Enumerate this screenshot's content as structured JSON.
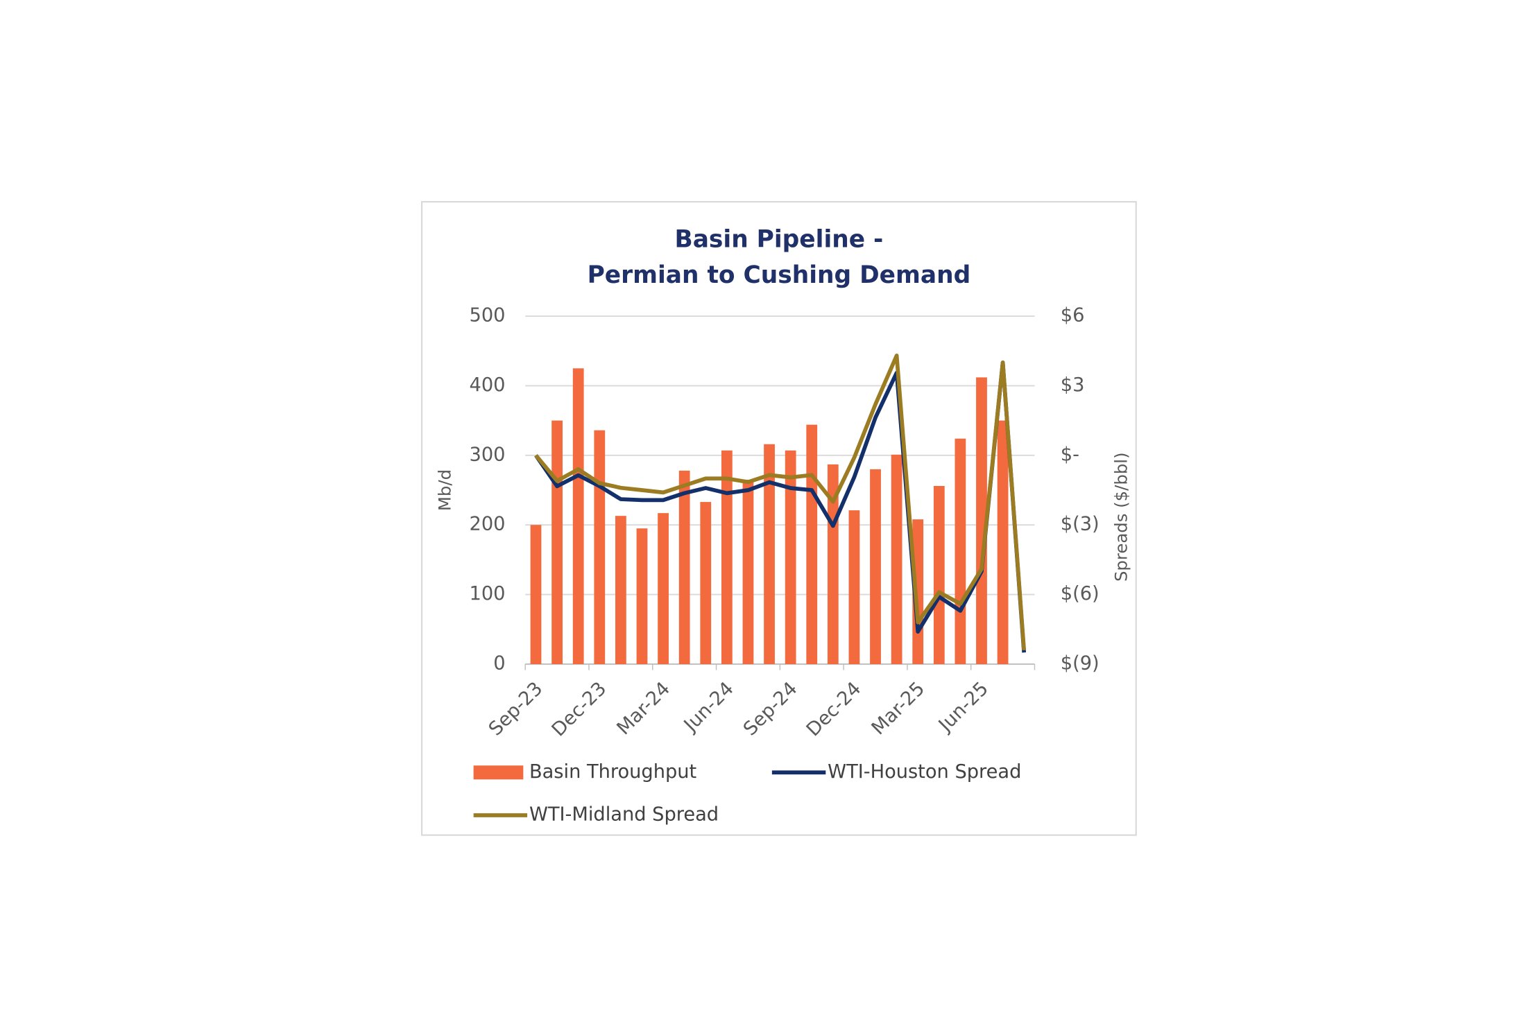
{
  "chart_data": {
    "type": "bar-line",
    "title": [
      "Basin Pipeline -",
      "Permian to Cushing Demand"
    ],
    "y_label": "Mb/d",
    "y2_label": "Spreads ($/bbl)",
    "categories": [
      "Sep-23",
      null,
      null,
      "Dec-23",
      null,
      null,
      "Mar-24",
      null,
      null,
      "Jun-24",
      null,
      null,
      "Sep-24",
      null,
      null,
      "Dec-24",
      null,
      null,
      "Mar-25",
      null,
      null,
      "Jun-25",
      null,
      null
    ],
    "series": [
      {
        "name": "Basin Throughput",
        "kind": "bar",
        "color": "#f26a3d",
        "values": [
          200,
          350,
          425,
          336,
          213,
          195,
          217,
          278,
          233,
          307,
          265,
          316,
          307,
          344,
          287,
          221,
          280,
          301,
          208,
          256,
          324,
          412,
          350,
          null
        ]
      },
      {
        "name": "WTI-Houston Spread",
        "kind": "line",
        "axis": "y2",
        "color": "#14306b",
        "values": [
          0,
          -1.33,
          -0.86,
          -1.33,
          -1.89,
          -1.93,
          -1.93,
          -1.63,
          -1.41,
          -1.63,
          -1.5,
          -1.16,
          -1.41,
          -1.5,
          -3.04,
          -0.94,
          1.63,
          3.56,
          -7.6,
          -6.1,
          -6.7,
          -5.0,
          4.0,
          -8.5
        ]
      },
      {
        "name": "WTI-Midland Spread",
        "kind": "line",
        "axis": "y2",
        "color": "#9c7c22",
        "values": [
          0,
          -1.1,
          -0.6,
          -1.2,
          -1.4,
          -1.5,
          -1.6,
          -1.3,
          -1.0,
          -1.0,
          -1.15,
          -0.85,
          -0.95,
          -0.85,
          -2.0,
          -0.1,
          2.2,
          4.3,
          -7.2,
          -5.9,
          -6.4,
          -4.9,
          4.0,
          -8.4
        ]
      }
    ],
    "ylim": [
      0,
      500
    ],
    "yticks": [
      0,
      100,
      200,
      300,
      400,
      500
    ],
    "y2lim": [
      -9,
      6
    ],
    "y2ticks": [
      {
        "value": 6,
        "label": "$6"
      },
      {
        "value": 3,
        "label": "$3"
      },
      {
        "value": 0,
        "label": "$-"
      },
      {
        "value": -3,
        "label": "$(3)"
      },
      {
        "value": -6,
        "label": "$(6)"
      },
      {
        "value": -9,
        "label": "$(9)"
      }
    ],
    "grid": true
  }
}
